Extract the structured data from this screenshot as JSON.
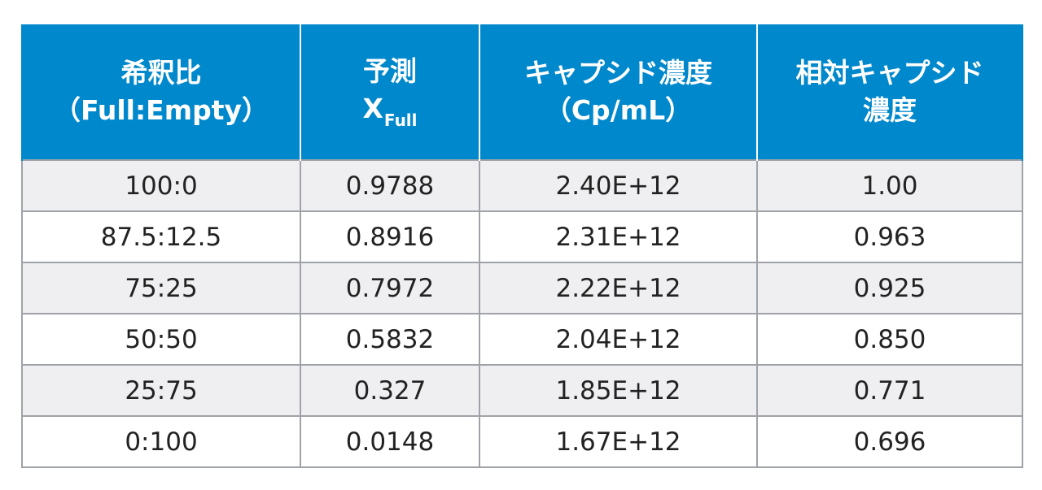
{
  "table": {
    "headers": {
      "col1": {
        "line1": "希釈比",
        "line2": "（Full:Empty）"
      },
      "col2": {
        "line1": "予測",
        "line2_main": "X",
        "line2_sub": "Full"
      },
      "col3": {
        "line1": "キャプシド濃度",
        "line2": "（Cp/mL）"
      },
      "col4": {
        "line1": "相対キャプシド",
        "line2": "濃度"
      }
    },
    "rows": [
      [
        "100:0",
        "0.9788",
        "2.40E+12",
        "1.00"
      ],
      [
        "87.5:12.5",
        "0.8916",
        "2.31E+12",
        "0.963"
      ],
      [
        "75:25",
        "0.7972",
        "2.22E+12",
        "0.925"
      ],
      [
        "50:50",
        "0.5832",
        "2.04E+12",
        "0.850"
      ],
      [
        "25:75",
        "0.327",
        "1.85E+12",
        "0.771"
      ],
      [
        "0:100",
        "0.0148",
        "1.67E+12",
        "0.696"
      ]
    ]
  },
  "colors": {
    "header_bg": "#0088cc",
    "header_text": "#ffffff",
    "row_alt_bg": "#efeff1",
    "border": "#9fa3a8"
  }
}
